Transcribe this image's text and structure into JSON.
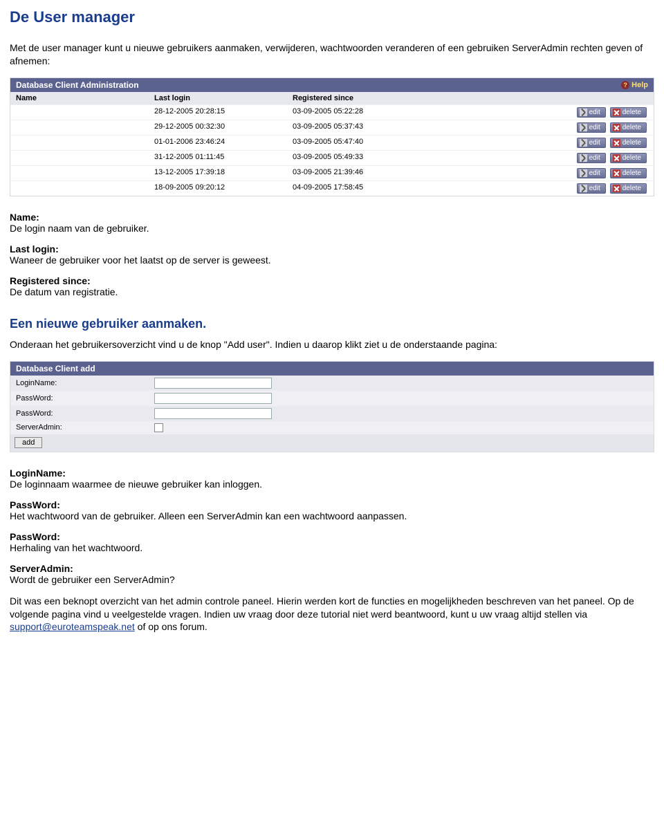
{
  "heading1": "De User manager",
  "intro": "Met de user manager kunt u nieuwe gebruikers aanmaken, verwijderen, wachtwoorden veranderen of een gebruiken ServerAdmin rechten geven of afnemen:",
  "panel1": {
    "title": "Database Client Administration",
    "help": "Help",
    "columns": {
      "c1": "Name",
      "c2": "Last login",
      "c3": "Registered since"
    },
    "editLabel": "edit",
    "deleteLabel": "delete",
    "rows": [
      {
        "login": "28-12-2005 20:28:15",
        "reg": "03-09-2005 05:22:28"
      },
      {
        "login": "29-12-2005 00:32:30",
        "reg": "03-09-2005 05:37:43"
      },
      {
        "login": "01-01-2006 23:46:24",
        "reg": "03-09-2005 05:47:40"
      },
      {
        "login": "31-12-2005 01:11:45",
        "reg": "03-09-2005 05:49:33"
      },
      {
        "login": "13-12-2005 17:39:18",
        "reg": "03-09-2005 21:39:46"
      },
      {
        "login": "18-09-2005 09:20:12",
        "reg": "04-09-2005 17:58:45"
      }
    ]
  },
  "fields1": [
    {
      "label": "Name:",
      "desc": "De login naam van de gebruiker."
    },
    {
      "label": "Last login:",
      "desc": "Waneer de gebruiker voor het laatst op de server is geweest."
    },
    {
      "label": "Registered since:",
      "desc": "De datum van registratie."
    }
  ],
  "heading2": "Een nieuwe gebruiker aanmaken.",
  "para2": "Onderaan het gebruikersoverzicht vind u de knop \"Add user\". Indien u daarop klikt ziet u de onderstaande pagina:",
  "panel2": {
    "title": "Database Client add",
    "rows": {
      "r1": "LoginName:",
      "r2": "PassWord:",
      "r3": "PassWord:",
      "r4": "ServerAdmin:"
    },
    "addBtn": "add"
  },
  "fields2": [
    {
      "label": "LoginName:",
      "desc": "De loginnaam waarmee de nieuwe gebruiker kan inloggen."
    },
    {
      "label": "PassWord:",
      "desc": "Het wachtwoord van de gebruiker. Alleen een ServerAdmin kan een wachtwoord aanpassen."
    },
    {
      "label": "PassWord:",
      "desc": "Herhaling van het wachtwoord."
    },
    {
      "label": "ServerAdmin:",
      "desc": "Wordt de gebruiker een ServerAdmin?"
    }
  ],
  "closing": {
    "part1": "Dit was een beknopt overzicht van het admin controle paneel. Hierin werden kort de functies en mogelijkheden beschreven van het paneel. Op de volgende pagina vind u veelgestelde vragen. Indien uw vraag door deze tutorial niet werd beantwoord, kunt u uw vraag altijd stellen via ",
    "link": "support@euroteamspeak.net",
    "part2": " of op ons forum."
  }
}
